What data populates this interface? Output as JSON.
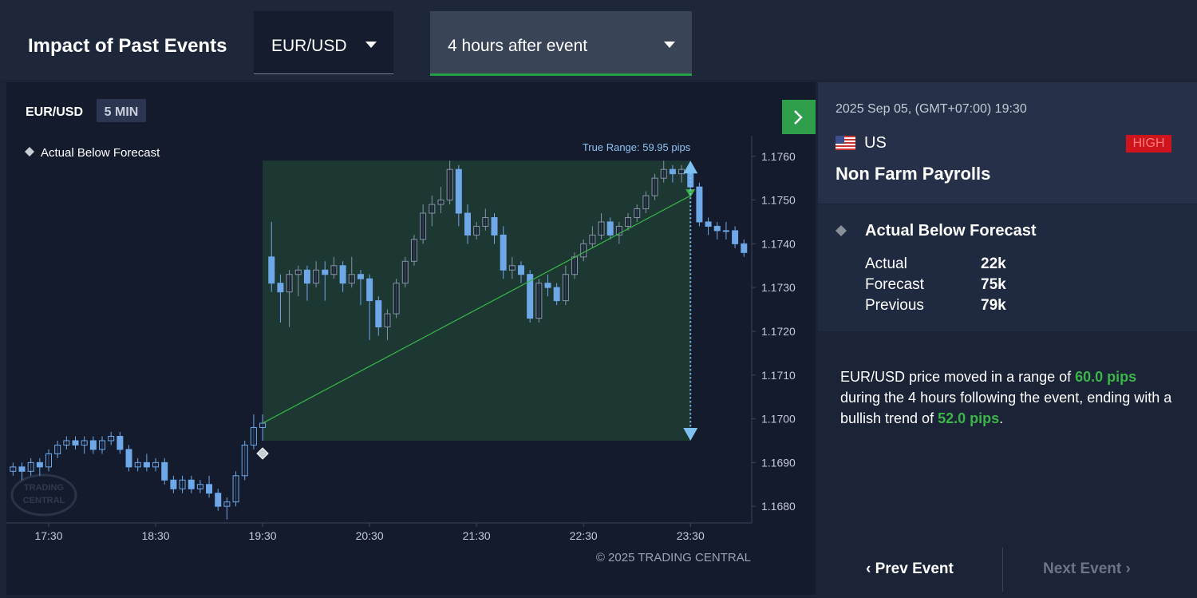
{
  "header": {
    "title": "Impact of Past Events",
    "symbol_select": "EUR/USD",
    "period_select": "4 hours after event"
  },
  "chart_data": {
    "type": "candlestick",
    "symbol": "EUR/USD",
    "interval": "5 MIN",
    "legend": "Actual Below Forecast",
    "range_label": "True Range: 59.95 pips",
    "copyright": "© 2025 TRADING CENTRAL",
    "watermark": [
      "TRADING",
      "CENTRAL"
    ],
    "categories": [
      null,
      null,
      null,
      null,
      "17:30",
      null,
      null,
      null,
      null,
      null,
      null,
      null,
      null,
      null,
      null,
      null,
      "18:30",
      null,
      null,
      null,
      null,
      null,
      null,
      null,
      null,
      null,
      null,
      null,
      "19:30",
      null,
      null,
      null,
      null,
      null,
      null,
      null,
      null,
      null,
      null,
      null,
      "20:30",
      null,
      null,
      null,
      null,
      null,
      null,
      null,
      null,
      null,
      null,
      null,
      "21:30",
      null,
      null,
      null,
      null,
      null,
      null,
      null,
      null,
      null,
      null,
      null,
      "22:30",
      null,
      null,
      null,
      null,
      null,
      null,
      null,
      null,
      null,
      null,
      null,
      "23:30",
      null,
      null,
      null,
      null,
      null,
      null
    ],
    "candles": [
      [
        1.1688,
        1.169,
        1.1687,
        1.1689
      ],
      [
        1.1689,
        1.169,
        1.1686,
        1.1688
      ],
      [
        1.1688,
        1.1691,
        1.1687,
        1.169
      ],
      [
        1.169,
        1.1691,
        1.1687,
        1.1689
      ],
      [
        1.1689,
        1.1693,
        1.1688,
        1.1692
      ],
      [
        1.1692,
        1.1695,
        1.1691,
        1.1694
      ],
      [
        1.1694,
        1.1696,
        1.1693,
        1.1695
      ],
      [
        1.1695,
        1.1696,
        1.1693,
        1.1694
      ],
      [
        1.1694,
        1.1696,
        1.1692,
        1.1695
      ],
      [
        1.1695,
        1.1696,
        1.1692,
        1.1693
      ],
      [
        1.1693,
        1.1696,
        1.1692,
        1.1695
      ],
      [
        1.1695,
        1.1697,
        1.1694,
        1.1696
      ],
      [
        1.1696,
        1.1697,
        1.1692,
        1.1693
      ],
      [
        1.1693,
        1.1694,
        1.1688,
        1.1689
      ],
      [
        1.1689,
        1.1691,
        1.1688,
        1.169
      ],
      [
        1.169,
        1.1692,
        1.1688,
        1.1689
      ],
      [
        1.1689,
        1.1691,
        1.1688,
        1.169
      ],
      [
        1.169,
        1.1691,
        1.1685,
        1.1686
      ],
      [
        1.1686,
        1.1687,
        1.1683,
        1.1684
      ],
      [
        1.1684,
        1.1687,
        1.1683,
        1.1686
      ],
      [
        1.1686,
        1.1687,
        1.1683,
        1.1684
      ],
      [
        1.1684,
        1.1686,
        1.1683,
        1.1685
      ],
      [
        1.1685,
        1.1687,
        1.1682,
        1.1683
      ],
      [
        1.1683,
        1.1684,
        1.1679,
        1.168
      ],
      [
        1.168,
        1.1682,
        1.1677,
        1.1681
      ],
      [
        1.1681,
        1.1688,
        1.168,
        1.1687
      ],
      [
        1.1687,
        1.1695,
        1.1686,
        1.1694
      ],
      [
        1.1694,
        1.1701,
        1.1693,
        1.1698
      ],
      [
        1.1698,
        1.1701,
        1.1695,
        1.1699
      ],
      [
        1.1737,
        1.1745,
        1.1729,
        1.1731
      ],
      [
        1.1731,
        1.1733,
        1.1722,
        1.1729
      ],
      [
        1.1729,
        1.1734,
        1.1721,
        1.1733
      ],
      [
        1.1733,
        1.1735,
        1.1728,
        1.1734
      ],
      [
        1.1734,
        1.1735,
        1.1727,
        1.1731
      ],
      [
        1.1731,
        1.1736,
        1.173,
        1.1734
      ],
      [
        1.1734,
        1.1736,
        1.1727,
        1.1733
      ],
      [
        1.1733,
        1.1737,
        1.1732,
        1.1735
      ],
      [
        1.1735,
        1.1736,
        1.1729,
        1.1731
      ],
      [
        1.1731,
        1.1737,
        1.173,
        1.1733
      ],
      [
        1.1733,
        1.1734,
        1.1726,
        1.1732
      ],
      [
        1.1732,
        1.1733,
        1.1718,
        1.1727
      ],
      [
        1.1727,
        1.1728,
        1.1719,
        1.1721
      ],
      [
        1.1721,
        1.1725,
        1.1718,
        1.1724
      ],
      [
        1.1724,
        1.1732,
        1.1723,
        1.1731
      ],
      [
        1.1731,
        1.1737,
        1.173,
        1.1736
      ],
      [
        1.1736,
        1.1742,
        1.1735,
        1.1741
      ],
      [
        1.1741,
        1.1749,
        1.174,
        1.1747
      ],
      [
        1.1747,
        1.1751,
        1.1744,
        1.1749
      ],
      [
        1.1749,
        1.1753,
        1.1747,
        1.175
      ],
      [
        1.175,
        1.1759,
        1.1749,
        1.1757
      ],
      [
        1.1757,
        1.1758,
        1.1744,
        1.1747
      ],
      [
        1.1747,
        1.1749,
        1.174,
        1.1742
      ],
      [
        1.1742,
        1.1745,
        1.1741,
        1.1744
      ],
      [
        1.1744,
        1.1748,
        1.1743,
        1.1746
      ],
      [
        1.1746,
        1.1747,
        1.174,
        1.1742
      ],
      [
        1.1742,
        1.1744,
        1.1732,
        1.1734
      ],
      [
        1.1734,
        1.1737,
        1.1732,
        1.1735
      ],
      [
        1.1735,
        1.1736,
        1.1731,
        1.1733
      ],
      [
        1.1733,
        1.1734,
        1.1722,
        1.1723
      ],
      [
        1.1723,
        1.1732,
        1.1722,
        1.1731
      ],
      [
        1.1731,
        1.1733,
        1.1728,
        1.173
      ],
      [
        1.173,
        1.1731,
        1.1726,
        1.1727
      ],
      [
        1.1727,
        1.1735,
        1.1726,
        1.1733
      ],
      [
        1.1733,
        1.1738,
        1.1732,
        1.1737
      ],
      [
        1.1737,
        1.1741,
        1.1736,
        1.174
      ],
      [
        1.174,
        1.1744,
        1.1739,
        1.1742
      ],
      [
        1.1742,
        1.1747,
        1.1741,
        1.1745
      ],
      [
        1.1745,
        1.1746,
        1.1741,
        1.1742
      ],
      [
        1.1742,
        1.1745,
        1.174,
        1.1744
      ],
      [
        1.1744,
        1.1747,
        1.1743,
        1.1746
      ],
      [
        1.1746,
        1.1749,
        1.1745,
        1.1748
      ],
      [
        1.1748,
        1.1752,
        1.1747,
        1.1751
      ],
      [
        1.1751,
        1.1756,
        1.175,
        1.1755
      ],
      [
        1.1755,
        1.1759,
        1.1754,
        1.1757
      ],
      [
        1.1757,
        1.1758,
        1.1754,
        1.1756
      ],
      [
        1.1756,
        1.1758,
        1.1754,
        1.1757
      ],
      [
        1.1757,
        1.1758,
        1.1751,
        1.1753
      ],
      [
        1.1753,
        1.1754,
        1.1744,
        1.1745
      ],
      [
        1.1745,
        1.1746,
        1.1742,
        1.1744
      ],
      [
        1.1744,
        1.1745,
        1.1741,
        1.1743
      ],
      [
        1.1743,
        1.1745,
        1.1741,
        1.1743
      ],
      [
        1.1743,
        1.1744,
        1.1739,
        1.174
      ],
      [
        1.174,
        1.1741,
        1.1737,
        1.1738
      ]
    ],
    "ylim": [
      1.16762,
      1.17647
    ],
    "yticks": [
      {
        "value": 1.168,
        "label": "1.1680"
      },
      {
        "value": 1.169,
        "label": "1.1690"
      },
      {
        "value": 1.17,
        "label": "1.1700"
      },
      {
        "value": 1.171,
        "label": "1.1710"
      },
      {
        "value": 1.172,
        "label": "1.1720"
      },
      {
        "value": 1.173,
        "label": "1.1730"
      },
      {
        "value": 1.174,
        "label": "1.1740"
      },
      {
        "value": 1.175,
        "label": "1.1750"
      },
      {
        "value": 1.176,
        "label": "1.1760"
      }
    ],
    "range_box": {
      "from": "19:30",
      "to": "23:30",
      "low": 1.1695,
      "high": 1.1759
    },
    "trend_line": {
      "start": 1.1699,
      "end": 1.1751
    },
    "up_color": "#6ea8e8",
    "down_color": "#6ea8e8",
    "in_range_up_color": "#8793a8",
    "box_color": "#1f3d35",
    "trend_color": "#3bb54a",
    "arrow_color": "#7ec0f0"
  },
  "event": {
    "datetime": "2025 Sep 05, (GMT+07:00) 19:30",
    "country": "US",
    "impact": "HIGH",
    "name": "Non Farm Payrolls",
    "outcome": "Actual Below Forecast",
    "rows": [
      [
        "Actual",
        "22k"
      ],
      [
        "Forecast",
        "75k"
      ],
      [
        "Previous",
        "79k"
      ]
    ],
    "summary": [
      "EUR/USD price moved in a range of ",
      "60.0 pips",
      " during the 4 hours following the event, ending with a bullish trend of ",
      "52.0 pips",
      "."
    ],
    "prev": "Prev Event",
    "next": "Next Event"
  }
}
